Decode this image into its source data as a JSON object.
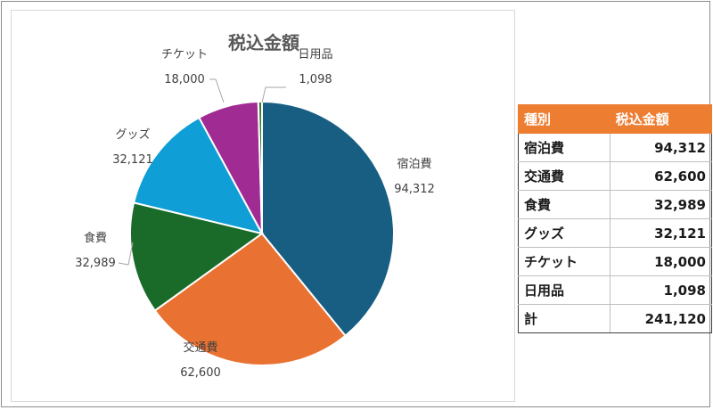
{
  "chart_data": {
    "type": "pie",
    "title": "税込金額",
    "categories": [
      "宿泊費",
      "交通費",
      "食費",
      "グッズ",
      "チケット",
      "日用品"
    ],
    "values": [
      94312,
      62600,
      32989,
      32121,
      18000,
      1098
    ],
    "value_labels": [
      "94,312",
      "62,600",
      "32,989",
      "32,121",
      "18,000",
      "1,098"
    ],
    "colors": [
      "#175e82",
      "#e97232",
      "#1a6b2a",
      "#0f9ed5",
      "#a02b93",
      "#3f7a2a"
    ],
    "start_angle_deg": 90,
    "direction": "clockwise",
    "legend": "none"
  },
  "table": {
    "headers": [
      "種別",
      "税込金額"
    ],
    "rows": [
      [
        "宿泊費",
        "94,312"
      ],
      [
        "交通費",
        "62,600"
      ],
      [
        "食費",
        "32,989"
      ],
      [
        "グッズ",
        "32,121"
      ],
      [
        "チケット",
        "18,000"
      ],
      [
        "日用品",
        "1,098"
      ],
      [
        "計",
        "241,120"
      ]
    ]
  }
}
